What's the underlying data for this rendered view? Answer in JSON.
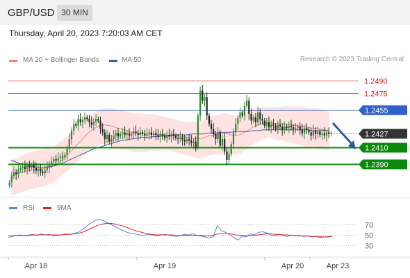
{
  "header": {
    "symbol": "GBP/USD",
    "timeframe": "30 MIN"
  },
  "timestamp": "Thursday, April 20, 2023 7:20:03 AM CET",
  "legend": {
    "ma20_label": "MA 20 + Bollinger Bands",
    "ma50_label": "MA 50",
    "credit": "Research © 2023 Trading Central",
    "rsi_label": "RSI",
    "rsi_ma_label": "9MA"
  },
  "colors": {
    "ma20": "#f08080",
    "ma50": "#3a5fa8",
    "band": "#ffd9d9",
    "resistance": "#e05a5a",
    "pivot": "#2e62c9",
    "support": "#0a8a0a",
    "up": "#2f8a2f",
    "down": "#222222",
    "arrow": "#2a5b9e",
    "rsi": "#5b84d6",
    "rsi_ma": "#e02020"
  },
  "chart_data": {
    "type": "candlestick",
    "price_axis": {
      "min": 1.2355,
      "max": 1.2505
    },
    "x_labels": [
      "Apr 18",
      "Apr 19",
      "Apr 20",
      "Apr 23"
    ],
    "levels": [
      {
        "value": 1.249,
        "label": "1.2490",
        "kind": "resistance"
      },
      {
        "value": 1.2475,
        "label": "1.2475",
        "kind": "resistance"
      },
      {
        "value": 1.2455,
        "label": "1.2455",
        "kind": "pivot"
      },
      {
        "value": 1.2427,
        "label": "1.2427",
        "kind": "last"
      },
      {
        "value": 1.241,
        "label": "1.2410",
        "kind": "support"
      },
      {
        "value": 1.239,
        "label": "1.2390",
        "kind": "support"
      }
    ],
    "last_price": 1.2427,
    "ohlc_closes": [
      1.2368,
      1.2376,
      1.238,
      1.2378,
      1.2383,
      1.2385,
      1.2387,
      1.2384,
      1.2388,
      1.2386,
      1.2389,
      1.2385,
      1.2382,
      1.2384,
      1.2381,
      1.2379,
      1.2383,
      1.2386,
      1.239,
      1.2393,
      1.2396,
      1.2394,
      1.2397,
      1.2399,
      1.2398,
      1.2401,
      1.2408,
      1.242,
      1.243,
      1.2438,
      1.2436,
      1.2444,
      1.244,
      1.2443,
      1.2446,
      1.2444,
      1.244,
      1.2437,
      1.2441,
      1.2444,
      1.2442,
      1.2432,
      1.2428,
      1.242,
      1.2425,
      1.2417,
      1.242,
      1.2424,
      1.2427,
      1.2423,
      1.2426,
      1.2428,
      1.2425,
      1.2427,
      1.2424,
      1.2426,
      1.2429,
      1.2427,
      1.2425,
      1.2428,
      1.2426,
      1.2424,
      1.2426,
      1.2428,
      1.2425,
      1.2427,
      1.2425,
      1.2423,
      1.2426,
      1.2424,
      1.2421,
      1.2425,
      1.2423,
      1.2426,
      1.2424,
      1.2421,
      1.242,
      1.2422,
      1.2419,
      1.2417,
      1.242,
      1.2418,
      1.2415,
      1.2417,
      1.241,
      1.2448,
      1.2478,
      1.2466,
      1.247,
      1.2448,
      1.2438,
      1.2432,
      1.2426,
      1.242,
      1.2428,
      1.2412,
      1.242,
      1.2405,
      1.2395,
      1.2402,
      1.2414,
      1.2428,
      1.2438,
      1.2445,
      1.2452,
      1.2448,
      1.246,
      1.2466,
      1.245,
      1.2442,
      1.2446,
      1.244,
      1.2452,
      1.2444,
      1.2442,
      1.2436,
      1.244,
      1.2434,
      1.2438,
      1.2436,
      1.2432,
      1.2437,
      1.2435,
      1.2431,
      1.2435,
      1.2433,
      1.2436,
      1.2434,
      1.2432,
      1.2433,
      1.2435,
      1.2431,
      1.2427,
      1.2433,
      1.2431,
      1.2428,
      1.2424,
      1.243,
      1.2426,
      1.2429,
      1.2425,
      1.2427,
      1.2424,
      1.2428,
      1.2426,
      1.2427
    ],
    "ma20": [
      1.2376,
      1.2378,
      1.238,
      1.2382,
      1.2383,
      1.2384,
      1.2385,
      1.2386,
      1.2388,
      1.2393,
      1.2399,
      1.2406,
      1.2413,
      1.242,
      1.2427,
      1.2432,
      1.2436,
      1.2437,
      1.2436,
      1.2434,
      1.2432,
      1.243,
      1.2428,
      1.2427,
      1.2426,
      1.2426,
      1.2426,
      1.2425,
      1.2425,
      1.2424,
      1.2424,
      1.2423,
      1.2422,
      1.2421,
      1.242,
      1.2421,
      1.2424,
      1.2425,
      1.2426,
      1.2427,
      1.2425,
      1.2424,
      1.2426,
      1.243,
      1.2434,
      1.2437,
      1.2439,
      1.244,
      1.2439,
      1.2438,
      1.2438,
      1.2437,
      1.2436,
      1.2435,
      1.2434,
      1.2433,
      1.2432,
      1.2431,
      1.243
    ],
    "ma50": [
      1.2395,
      1.2392,
      1.239,
      1.2388,
      1.2387,
      1.2386,
      1.2386,
      1.2387,
      1.2388,
      1.239,
      1.2393,
      1.2396,
      1.2399,
      1.2402,
      1.2405,
      1.2408,
      1.241,
      1.2412,
      1.2414,
      1.2416,
      1.2418,
      1.2419,
      1.242,
      1.2421,
      1.2422,
      1.2422,
      1.2423,
      1.2423,
      1.2424,
      1.2424,
      1.2425,
      1.2425,
      1.2425,
      1.2426,
      1.2426,
      1.2426,
      1.2427,
      1.2427,
      1.2428,
      1.2428,
      1.2428,
      1.2429,
      1.2429,
      1.2429,
      1.243,
      1.243,
      1.2431,
      1.2431,
      1.2431,
      1.2431,
      1.2431,
      1.2431,
      1.2431,
      1.2431,
      1.2431,
      1.243,
      1.243,
      1.243,
      1.243
    ],
    "rsi_axis": {
      "ticks": [
        70,
        50,
        30
      ],
      "min": 10,
      "max": 90
    },
    "rsi": [
      45,
      47,
      49,
      50,
      48,
      50,
      51,
      49,
      52,
      50,
      51,
      48,
      49,
      50,
      52,
      51,
      53,
      55,
      60,
      66,
      72,
      77,
      80,
      78,
      74,
      70,
      66,
      62,
      58,
      55,
      53,
      52,
      50,
      49,
      51,
      50,
      48,
      49,
      51,
      50,
      48,
      47,
      49,
      51,
      50,
      52,
      49,
      48,
      46,
      44,
      47,
      68,
      58,
      55,
      50,
      45,
      40,
      48,
      46,
      52,
      50,
      55,
      56,
      54,
      50,
      48,
      51,
      49,
      47,
      50,
      48,
      49,
      47,
      48,
      46,
      47,
      45,
      46,
      47,
      47
    ],
    "rsi_ma": [
      48,
      48,
      49,
      49,
      49,
      49,
      50,
      50,
      50,
      50,
      50,
      50,
      50,
      50,
      51,
      51,
      52,
      53,
      55,
      58,
      62,
      66,
      69,
      71,
      72,
      72,
      71,
      69,
      67,
      64,
      61,
      58,
      56,
      54,
      52,
      51,
      50,
      50,
      50,
      50,
      50,
      49,
      49,
      49,
      49,
      49,
      49,
      49,
      48,
      48,
      49,
      52,
      53,
      53,
      52,
      51,
      49,
      49,
      48,
      49,
      49,
      50,
      51,
      52,
      52,
      51,
      51,
      50,
      50,
      49,
      49,
      48,
      48,
      48,
      47,
      47,
      47,
      46,
      46,
      47
    ]
  }
}
